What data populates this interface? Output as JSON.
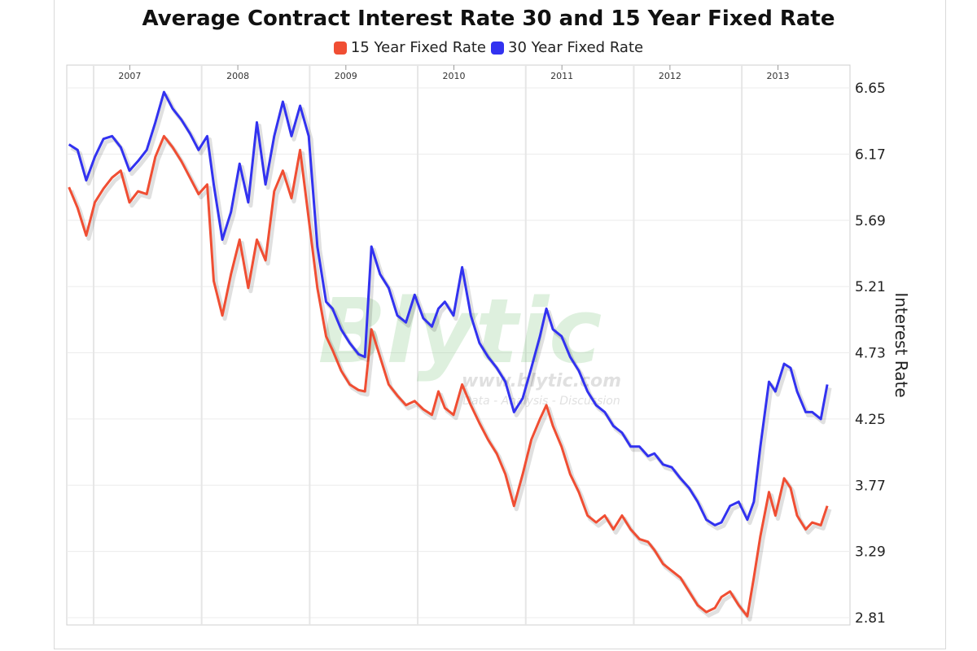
{
  "chart_data": {
    "type": "line",
    "title": "Average Contract Interest Rate 30 and 15 Year Fixed Rate",
    "xlabel": "",
    "ylabel": "Interest Rate",
    "x_tick_labels": [
      "2007",
      "2008",
      "2009",
      "2010",
      "2011",
      "2012",
      "2013"
    ],
    "y_ticks": [
      2.81,
      3.29,
      3.77,
      4.25,
      4.73,
      5.21,
      5.69,
      6.17,
      6.65
    ],
    "ylim": [
      2.81,
      6.65
    ],
    "xlim": [
      2006.6,
      2013.85
    ],
    "grid": true,
    "legend_position": "top-center",
    "series": [
      {
        "name": "15 Year Fixed Rate",
        "color": "#f04e33",
        "points": [
          [
            2006.62,
            5.93
          ],
          [
            2006.7,
            5.78
          ],
          [
            2006.78,
            5.58
          ],
          [
            2006.86,
            5.82
          ],
          [
            2006.94,
            5.92
          ],
          [
            2007.02,
            6.0
          ],
          [
            2007.1,
            6.05
          ],
          [
            2007.18,
            5.82
          ],
          [
            2007.26,
            5.9
          ],
          [
            2007.34,
            5.88
          ],
          [
            2007.42,
            6.15
          ],
          [
            2007.5,
            6.3
          ],
          [
            2007.58,
            6.22
          ],
          [
            2007.66,
            6.12
          ],
          [
            2007.74,
            6.0
          ],
          [
            2007.82,
            5.88
          ],
          [
            2007.9,
            5.95
          ],
          [
            2007.96,
            5.25
          ],
          [
            2008.04,
            5.0
          ],
          [
            2008.12,
            5.3
          ],
          [
            2008.2,
            5.55
          ],
          [
            2008.28,
            5.2
          ],
          [
            2008.36,
            5.55
          ],
          [
            2008.44,
            5.4
          ],
          [
            2008.52,
            5.9
          ],
          [
            2008.6,
            6.05
          ],
          [
            2008.68,
            5.85
          ],
          [
            2008.76,
            6.2
          ],
          [
            2008.84,
            5.7
          ],
          [
            2008.92,
            5.2
          ],
          [
            2009.0,
            4.85
          ],
          [
            2009.06,
            4.75
          ],
          [
            2009.14,
            4.6
          ],
          [
            2009.22,
            4.5
          ],
          [
            2009.3,
            4.46
          ],
          [
            2009.36,
            4.45
          ],
          [
            2009.42,
            4.9
          ],
          [
            2009.5,
            4.7
          ],
          [
            2009.58,
            4.5
          ],
          [
            2009.66,
            4.42
          ],
          [
            2009.74,
            4.35
          ],
          [
            2009.82,
            4.38
          ],
          [
            2009.9,
            4.32
          ],
          [
            2009.98,
            4.28
          ],
          [
            2010.04,
            4.45
          ],
          [
            2010.1,
            4.33
          ],
          [
            2010.18,
            4.28
          ],
          [
            2010.26,
            4.5
          ],
          [
            2010.34,
            4.35
          ],
          [
            2010.42,
            4.22
          ],
          [
            2010.5,
            4.1
          ],
          [
            2010.58,
            4.0
          ],
          [
            2010.66,
            3.85
          ],
          [
            2010.74,
            3.62
          ],
          [
            2010.82,
            3.85
          ],
          [
            2010.9,
            4.1
          ],
          [
            2010.98,
            4.25
          ],
          [
            2011.04,
            4.35
          ],
          [
            2011.1,
            4.2
          ],
          [
            2011.18,
            4.05
          ],
          [
            2011.26,
            3.85
          ],
          [
            2011.34,
            3.72
          ],
          [
            2011.42,
            3.55
          ],
          [
            2011.5,
            3.5
          ],
          [
            2011.58,
            3.55
          ],
          [
            2011.66,
            3.45
          ],
          [
            2011.74,
            3.55
          ],
          [
            2011.82,
            3.45
          ],
          [
            2011.9,
            3.38
          ],
          [
            2011.98,
            3.36
          ],
          [
            2012.04,
            3.3
          ],
          [
            2012.12,
            3.2
          ],
          [
            2012.2,
            3.15
          ],
          [
            2012.28,
            3.1
          ],
          [
            2012.36,
            3.0
          ],
          [
            2012.44,
            2.9
          ],
          [
            2012.52,
            2.85
          ],
          [
            2012.6,
            2.88
          ],
          [
            2012.66,
            2.96
          ],
          [
            2012.74,
            3.0
          ],
          [
            2012.82,
            2.9
          ],
          [
            2012.9,
            2.82
          ],
          [
            2012.96,
            3.1
          ],
          [
            2013.02,
            3.4
          ],
          [
            2013.1,
            3.72
          ],
          [
            2013.16,
            3.55
          ],
          [
            2013.24,
            3.82
          ],
          [
            2013.3,
            3.75
          ],
          [
            2013.36,
            3.55
          ],
          [
            2013.44,
            3.45
          ],
          [
            2013.5,
            3.5
          ],
          [
            2013.58,
            3.48
          ],
          [
            2013.64,
            3.62
          ]
        ]
      },
      {
        "name": "30 Year Fixed Rate",
        "color": "#3232f0",
        "points": [
          [
            2006.62,
            6.24
          ],
          [
            2006.7,
            6.2
          ],
          [
            2006.78,
            5.98
          ],
          [
            2006.86,
            6.15
          ],
          [
            2006.94,
            6.28
          ],
          [
            2007.02,
            6.3
          ],
          [
            2007.1,
            6.22
          ],
          [
            2007.18,
            6.05
          ],
          [
            2007.26,
            6.12
          ],
          [
            2007.34,
            6.2
          ],
          [
            2007.42,
            6.4
          ],
          [
            2007.5,
            6.62
          ],
          [
            2007.58,
            6.5
          ],
          [
            2007.66,
            6.42
          ],
          [
            2007.74,
            6.32
          ],
          [
            2007.82,
            6.2
          ],
          [
            2007.9,
            6.3
          ],
          [
            2007.96,
            5.95
          ],
          [
            2008.04,
            5.55
          ],
          [
            2008.12,
            5.75
          ],
          [
            2008.2,
            6.1
          ],
          [
            2008.28,
            5.82
          ],
          [
            2008.36,
            6.4
          ],
          [
            2008.44,
            5.95
          ],
          [
            2008.52,
            6.3
          ],
          [
            2008.6,
            6.55
          ],
          [
            2008.68,
            6.3
          ],
          [
            2008.76,
            6.52
          ],
          [
            2008.84,
            6.3
          ],
          [
            2008.92,
            5.5
          ],
          [
            2009.0,
            5.1
          ],
          [
            2009.06,
            5.05
          ],
          [
            2009.14,
            4.9
          ],
          [
            2009.22,
            4.8
          ],
          [
            2009.3,
            4.72
          ],
          [
            2009.36,
            4.7
          ],
          [
            2009.42,
            5.5
          ],
          [
            2009.5,
            5.3
          ],
          [
            2009.58,
            5.2
          ],
          [
            2009.66,
            5.0
          ],
          [
            2009.74,
            4.95
          ],
          [
            2009.82,
            5.15
          ],
          [
            2009.9,
            4.98
          ],
          [
            2009.98,
            4.92
          ],
          [
            2010.04,
            5.05
          ],
          [
            2010.1,
            5.1
          ],
          [
            2010.18,
            5.0
          ],
          [
            2010.26,
            5.35
          ],
          [
            2010.34,
            5.0
          ],
          [
            2010.42,
            4.8
          ],
          [
            2010.5,
            4.7
          ],
          [
            2010.58,
            4.62
          ],
          [
            2010.66,
            4.52
          ],
          [
            2010.74,
            4.3
          ],
          [
            2010.82,
            4.4
          ],
          [
            2010.9,
            4.62
          ],
          [
            2010.98,
            4.85
          ],
          [
            2011.04,
            5.05
          ],
          [
            2011.1,
            4.9
          ],
          [
            2011.18,
            4.85
          ],
          [
            2011.26,
            4.7
          ],
          [
            2011.34,
            4.6
          ],
          [
            2011.42,
            4.45
          ],
          [
            2011.5,
            4.35
          ],
          [
            2011.58,
            4.3
          ],
          [
            2011.66,
            4.2
          ],
          [
            2011.74,
            4.15
          ],
          [
            2011.82,
            4.05
          ],
          [
            2011.9,
            4.05
          ],
          [
            2011.98,
            3.98
          ],
          [
            2012.04,
            4.0
          ],
          [
            2012.12,
            3.92
          ],
          [
            2012.2,
            3.9
          ],
          [
            2012.28,
            3.82
          ],
          [
            2012.36,
            3.75
          ],
          [
            2012.44,
            3.65
          ],
          [
            2012.52,
            3.52
          ],
          [
            2012.6,
            3.48
          ],
          [
            2012.66,
            3.5
          ],
          [
            2012.74,
            3.62
          ],
          [
            2012.82,
            3.65
          ],
          [
            2012.9,
            3.52
          ],
          [
            2012.96,
            3.65
          ],
          [
            2013.02,
            4.05
          ],
          [
            2013.1,
            4.52
          ],
          [
            2013.16,
            4.45
          ],
          [
            2013.24,
            4.65
          ],
          [
            2013.3,
            4.62
          ],
          [
            2013.36,
            4.45
          ],
          [
            2013.44,
            4.3
          ],
          [
            2013.5,
            4.3
          ],
          [
            2013.58,
            4.25
          ],
          [
            2013.64,
            4.5
          ]
        ]
      }
    ]
  },
  "watermark": {
    "brand": "Blytic",
    "url": "www.blytic.com",
    "tagline": "Data - Analysis - Discussion"
  }
}
